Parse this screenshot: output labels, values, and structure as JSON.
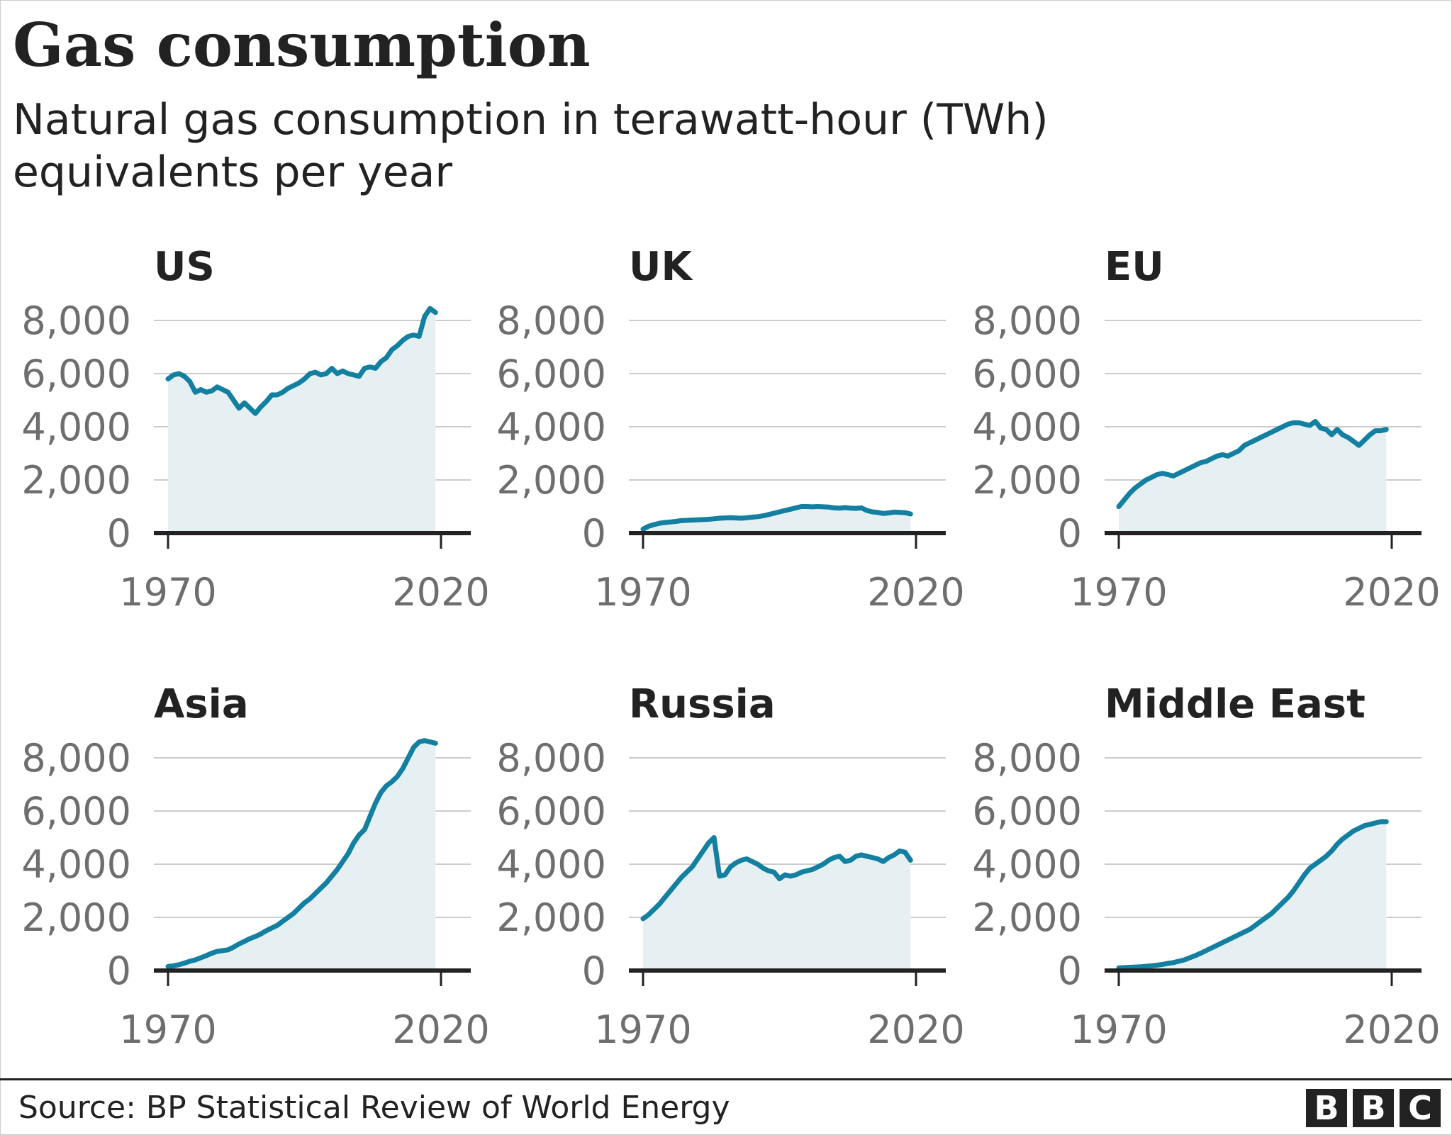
{
  "title": "Gas consumption",
  "subtitle": "Natural gas consumption in terawatt-hour (TWh) equivalents per year",
  "source": "Source: BP Statistical Review of World Energy",
  "logo": [
    "B",
    "B",
    "C"
  ],
  "colors": {
    "line": "#1380a1",
    "area": "#e6f0f3",
    "grid": "#cccccc",
    "axis": "#222222",
    "tick": "#6e6e6e"
  },
  "chart_data": [
    {
      "type": "area",
      "title": "US",
      "x_start": 1970,
      "x_ticks": [
        "1970",
        "2020"
      ],
      "xlim": [
        1970,
        2020
      ],
      "ylim": [
        0,
        8000
      ],
      "y_ticks": [
        0,
        2000,
        4000,
        6000,
        8000
      ],
      "y_tick_labels": [
        "0",
        "2,000",
        "4,000",
        "6,000",
        "8,000"
      ],
      "series": [
        {
          "values": [
            5800,
            5950,
            6000,
            5900,
            5700,
            5300,
            5400,
            5300,
            5350,
            5500,
            5400,
            5300,
            5000,
            4700,
            4900,
            4700,
            4500,
            4750,
            4950,
            5200,
            5200,
            5300,
            5450,
            5550,
            5650,
            5800,
            6000,
            6050,
            5950,
            6000,
            6200,
            6000,
            6100,
            6000,
            5950,
            5900,
            6200,
            6250,
            6200,
            6450,
            6600,
            6900,
            7050,
            7250,
            7400,
            7450,
            7400,
            8150,
            8450,
            8300
          ]
        }
      ]
    },
    {
      "type": "area",
      "title": "UK",
      "x_start": 1970,
      "x_ticks": [
        "1970",
        "2020"
      ],
      "xlim": [
        1970,
        2020
      ],
      "ylim": [
        0,
        8000
      ],
      "y_ticks": [
        0,
        2000,
        4000,
        6000,
        8000
      ],
      "y_tick_labels": [
        "0",
        "2,000",
        "4,000",
        "6,000",
        "8,000"
      ],
      "series": [
        {
          "values": [
            150,
            260,
            320,
            370,
            400,
            420,
            440,
            470,
            480,
            490,
            500,
            510,
            520,
            540,
            560,
            570,
            580,
            570,
            560,
            580,
            600,
            620,
            650,
            700,
            750,
            800,
            850,
            900,
            950,
            1000,
            1000,
            990,
            1000,
            990,
            980,
            950,
            940,
            960,
            940,
            930,
            950,
            850,
            800,
            780,
            740,
            760,
            790,
            780,
            770,
            720
          ]
        }
      ]
    },
    {
      "type": "area",
      "title": "EU",
      "x_start": 1970,
      "x_ticks": [
        "1970",
        "2020"
      ],
      "xlim": [
        1970,
        2020
      ],
      "ylim": [
        0,
        8000
      ],
      "y_ticks": [
        0,
        2000,
        4000,
        6000,
        8000
      ],
      "y_tick_labels": [
        "0",
        "2,000",
        "4,000",
        "6,000",
        "8,000"
      ],
      "series": [
        {
          "values": [
            1000,
            1250,
            1500,
            1700,
            1850,
            2000,
            2100,
            2200,
            2250,
            2200,
            2150,
            2250,
            2350,
            2450,
            2550,
            2650,
            2700,
            2800,
            2900,
            2950,
            2900,
            3000,
            3100,
            3300,
            3400,
            3500,
            3600,
            3700,
            3800,
            3900,
            4000,
            4100,
            4150,
            4150,
            4100,
            4050,
            4200,
            3950,
            3900,
            3700,
            3900,
            3700,
            3600,
            3450,
            3300,
            3500,
            3700,
            3850,
            3850,
            3900
          ]
        }
      ]
    },
    {
      "type": "area",
      "title": "Asia",
      "x_start": 1970,
      "x_ticks": [
        "1970",
        "2020"
      ],
      "xlim": [
        1970,
        2020
      ],
      "ylim": [
        0,
        8000
      ],
      "y_ticks": [
        0,
        2000,
        4000,
        6000,
        8000
      ],
      "y_tick_labels": [
        "0",
        "2,000",
        "4,000",
        "6,000",
        "8,000"
      ],
      "series": [
        {
          "values": [
            150,
            180,
            220,
            280,
            350,
            400,
            480,
            560,
            650,
            720,
            750,
            780,
            880,
            1000,
            1100,
            1200,
            1280,
            1380,
            1500,
            1600,
            1700,
            1850,
            2000,
            2150,
            2350,
            2550,
            2700,
            2900,
            3100,
            3300,
            3550,
            3800,
            4100,
            4400,
            4800,
            5100,
            5300,
            5800,
            6300,
            6700,
            6950,
            7100,
            7300,
            7600,
            8000,
            8400,
            8600,
            8650,
            8600,
            8550
          ]
        }
      ]
    },
    {
      "type": "area",
      "title": "Russia",
      "x_start": 1970,
      "x_ticks": [
        "1970",
        "2020"
      ],
      "xlim": [
        1970,
        2020
      ],
      "ylim": [
        0,
        8000
      ],
      "y_ticks": [
        0,
        2000,
        4000,
        6000,
        8000
      ],
      "y_tick_labels": [
        "0",
        "2,000",
        "4,000",
        "6,000",
        "8,000"
      ],
      "series": [
        {
          "values": [
            1950,
            2100,
            2300,
            2500,
            2750,
            3000,
            3250,
            3500,
            3700,
            3900,
            4200,
            4500,
            4800,
            5000,
            3550,
            3600,
            3900,
            4050,
            4150,
            4200,
            4100,
            4000,
            3850,
            3750,
            3700,
            3450,
            3600,
            3550,
            3600,
            3700,
            3750,
            3800,
            3900,
            4000,
            4150,
            4250,
            4300,
            4100,
            4150,
            4300,
            4350,
            4300,
            4250,
            4200,
            4100,
            4250,
            4350,
            4500,
            4450,
            4150
          ]
        }
      ]
    },
    {
      "type": "area",
      "title": "Middle East",
      "x_start": 1970,
      "x_ticks": [
        "1970",
        "2020"
      ],
      "xlim": [
        1970,
        2020
      ],
      "ylim": [
        0,
        8000
      ],
      "y_ticks": [
        0,
        2000,
        4000,
        6000,
        8000
      ],
      "y_tick_labels": [
        "0",
        "2,000",
        "4,000",
        "6,000",
        "8,000"
      ],
      "series": [
        {
          "values": [
            100,
            110,
            120,
            130,
            140,
            160,
            180,
            200,
            230,
            270,
            300,
            350,
            400,
            480,
            560,
            650,
            750,
            850,
            950,
            1050,
            1150,
            1250,
            1350,
            1450,
            1550,
            1700,
            1850,
            2000,
            2150,
            2350,
            2550,
            2750,
            3000,
            3300,
            3600,
            3850,
            4000,
            4150,
            4300,
            4500,
            4750,
            4950,
            5100,
            5250,
            5350,
            5450,
            5500,
            5550,
            5600,
            5600
          ]
        }
      ]
    }
  ]
}
